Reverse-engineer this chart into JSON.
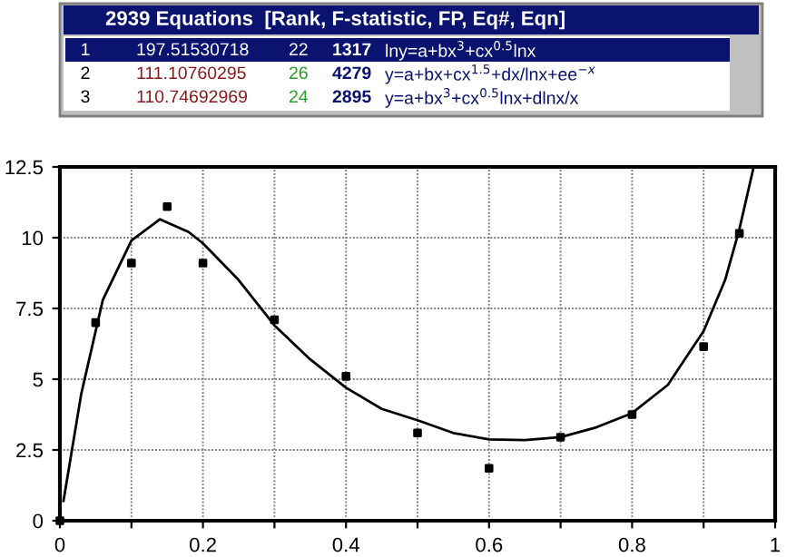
{
  "chart_data": {
    "type": "scatter",
    "title": "2939 Equations  [Rank, F-statistic, FP, Eq#, Eqn]",
    "annotations": [
      "1",
      "197.51530718",
      "22",
      "1317",
      "lny=a+bx$^{3}$+cx$^{0.5}$lnx",
      "2",
      "111.10760295",
      "26",
      "4279",
      "y=a+bx+cx$^{1.5}$+dx/lnx+ee$^{−x}$",
      "3",
      "110.74692969",
      "24",
      "2895",
      "y=a+bx$^{3}$+cx$^{0.5}$lnx+dlnx/x"
    ],
    "series": [
      {
        "color": "#000000",
        "marker": "square",
        "x": [
          0,
          0.05,
          0.1,
          0.15,
          0.2,
          0.3,
          0.4,
          0.5,
          0.6,
          0.7,
          0.8,
          0.9,
          0.95
        ],
        "values": [
          0,
          7.0,
          9.1,
          11.1,
          9.1,
          7.1,
          5.1,
          3.1,
          1.85,
          2.95,
          3.75,
          6.15,
          10.15
        ]
      },
      {
        "type": "line",
        "color": "#000000",
        "x": [
          0.005,
          0.03,
          0.06,
          0.1,
          0.14,
          0.18,
          0.2,
          0.25,
          0.3,
          0.35,
          0.4,
          0.45,
          0.5,
          0.55,
          0.6,
          0.65,
          0.7,
          0.75,
          0.8,
          0.85,
          0.9,
          0.93,
          0.95,
          0.97
        ],
        "values": [
          0.7,
          4.5,
          7.8,
          9.9,
          10.65,
          10.2,
          9.8,
          8.5,
          6.9,
          5.7,
          4.7,
          3.95,
          3.55,
          3.1,
          2.87,
          2.85,
          2.95,
          3.3,
          3.8,
          4.8,
          6.7,
          8.5,
          10.3,
          12.5
        ]
      }
    ],
    "xlim": [
      0,
      1
    ],
    "xticks": [
      0,
      {
        "value": 0.1,
        "label": null
      },
      0.2,
      {
        "value": 0.3,
        "label": null
      },
      0.4,
      {
        "value": 0.5,
        "label": null
      },
      0.6,
      {
        "value": 0.7,
        "label": null
      },
      0.8,
      {
        "value": 0.9,
        "label": null
      },
      1
    ],
    "ylim": [
      0,
      12.5
    ],
    "yticks": [
      0,
      2.5,
      5,
      7.5,
      10,
      12.5
    ],
    "grid": true
  }
}
